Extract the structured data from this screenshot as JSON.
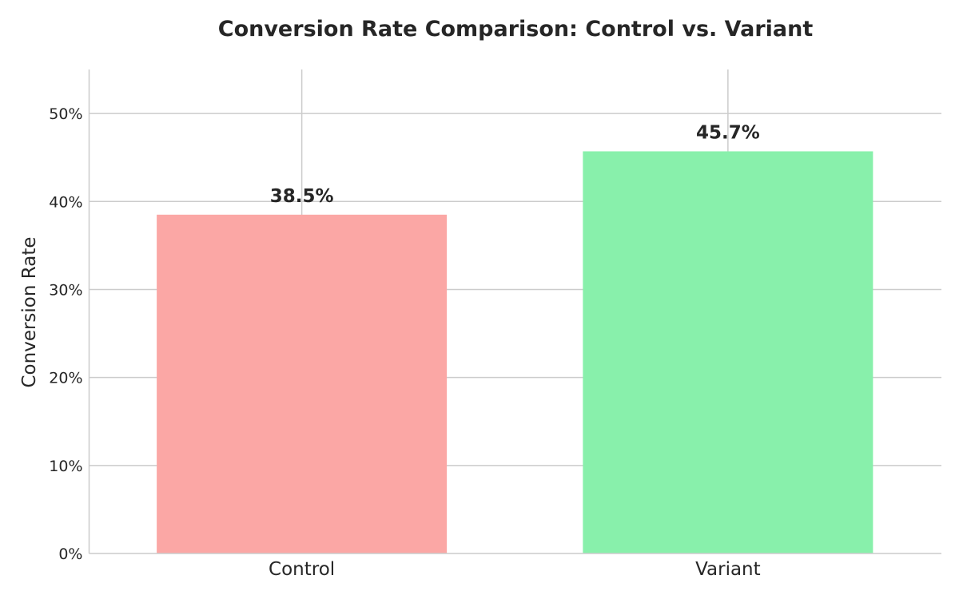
{
  "chart_data": {
    "type": "bar",
    "title": "Conversion Rate Comparison: Control vs. Variant",
    "xlabel": "",
    "ylabel": "Conversion Rate",
    "categories": [
      "Control",
      "Variant"
    ],
    "values": [
      0.385,
      0.457
    ],
    "value_labels": [
      "38.5%",
      "45.7%"
    ],
    "colors": [
      "#fba7a5",
      "#88f0ab"
    ],
    "ylim": [
      0,
      0.55
    ],
    "yticks": [
      0,
      0.1,
      0.2,
      0.3,
      0.4,
      0.5
    ],
    "ytick_labels": [
      "0%",
      "10%",
      "20%",
      "30%",
      "40%",
      "50%"
    ],
    "grid": true,
    "legend": "none"
  }
}
